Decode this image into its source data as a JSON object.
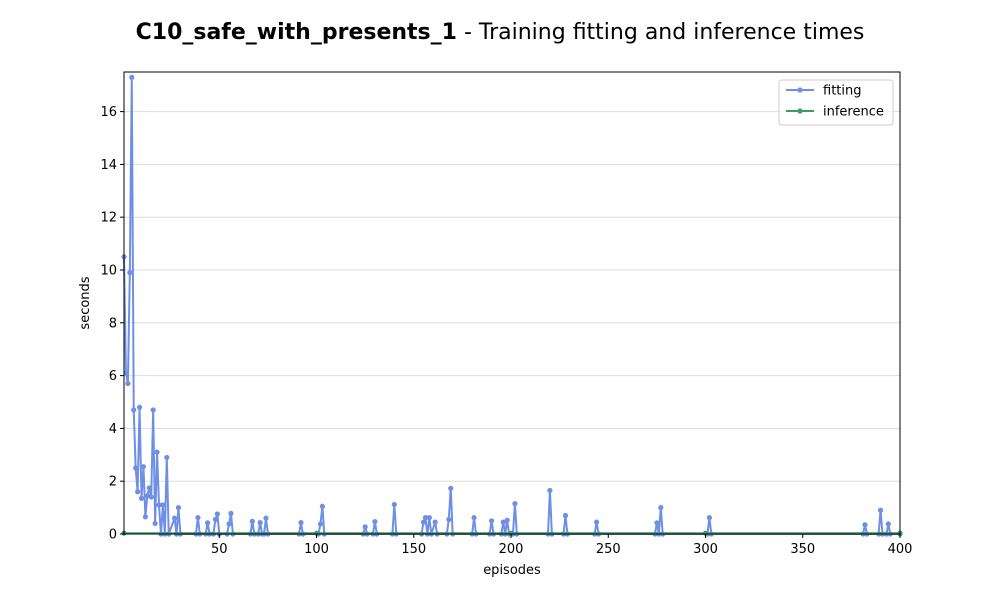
{
  "chart_data": {
    "type": "line",
    "title_bold": "C10_safe_with_presents_1",
    "title_rest": " - Training fitting and inference times",
    "xlabel": "episodes",
    "ylabel": "seconds",
    "xlim": [
      1,
      400
    ],
    "ylim": [
      0,
      17.5
    ],
    "xticks": [
      50,
      100,
      150,
      200,
      250,
      300,
      350,
      400
    ],
    "yticks": [
      0,
      2,
      4,
      6,
      8,
      10,
      12,
      14,
      16
    ],
    "grid": "horizontal",
    "legend_position": "top-right",
    "series": [
      {
        "name": "fitting",
        "color": "#6f8fe6",
        "points": [
          [
            1,
            10.5
          ],
          [
            2,
            6.1
          ],
          [
            3,
            5.7
          ],
          [
            4,
            9.9
          ],
          [
            5,
            17.3
          ],
          [
            6,
            4.7
          ],
          [
            7,
            2.5
          ],
          [
            8,
            1.6
          ],
          [
            9,
            4.8
          ],
          [
            10,
            1.35
          ],
          [
            11,
            2.55
          ],
          [
            12,
            0.65
          ],
          [
            13,
            1.45
          ],
          [
            14,
            1.75
          ],
          [
            15,
            1.4
          ],
          [
            16,
            4.7
          ],
          [
            17,
            0.4
          ],
          [
            18,
            3.1
          ],
          [
            19,
            1.1
          ],
          [
            20,
            0.0
          ],
          [
            21,
            1.1
          ],
          [
            22,
            0.0
          ],
          [
            23,
            2.9
          ],
          [
            24,
            0.0
          ],
          [
            27,
            0.6
          ],
          [
            28,
            0.0
          ],
          [
            29,
            1.0
          ],
          [
            30,
            0.0
          ],
          [
            38,
            0.0
          ],
          [
            39,
            0.62
          ],
          [
            40,
            0.0
          ],
          [
            43,
            0.0
          ],
          [
            44,
            0.42
          ],
          [
            45,
            0.0
          ],
          [
            47,
            0.0
          ],
          [
            48,
            0.55
          ],
          [
            49,
            0.76
          ],
          [
            50,
            0.0
          ],
          [
            54,
            0.0
          ],
          [
            55,
            0.38
          ],
          [
            56,
            0.78
          ],
          [
            57,
            0.0
          ],
          [
            66,
            0.0
          ],
          [
            67,
            0.48
          ],
          [
            68,
            0.0
          ],
          [
            70,
            0.0
          ],
          [
            71,
            0.43
          ],
          [
            72,
            0.0
          ],
          [
            73,
            0.0
          ],
          [
            74,
            0.6
          ],
          [
            75,
            0.0
          ],
          [
            91,
            0.0
          ],
          [
            92,
            0.43
          ],
          [
            93,
            0.0
          ],
          [
            101,
            0.0
          ],
          [
            102,
            0.38
          ],
          [
            103,
            1.05
          ],
          [
            104,
            0.0
          ],
          [
            124,
            0.0
          ],
          [
            125,
            0.27
          ],
          [
            126,
            0.0
          ],
          [
            129,
            0.0
          ],
          [
            130,
            0.47
          ],
          [
            131,
            0.0
          ],
          [
            139,
            0.0
          ],
          [
            140,
            1.12
          ],
          [
            141,
            0.0
          ],
          [
            154,
            0.0
          ],
          [
            155,
            0.45
          ],
          [
            156,
            0.62
          ],
          [
            157,
            0.0
          ],
          [
            158,
            0.62
          ],
          [
            159,
            0.0
          ],
          [
            161,
            0.45
          ],
          [
            162,
            0.0
          ],
          [
            167,
            0.0
          ],
          [
            168,
            0.55
          ],
          [
            169,
            1.73
          ],
          [
            170,
            0.0
          ],
          [
            180,
            0.0
          ],
          [
            181,
            0.62
          ],
          [
            182,
            0.0
          ],
          [
            189,
            0.0
          ],
          [
            190,
            0.5
          ],
          [
            191,
            0.0
          ],
          [
            195,
            0.0
          ],
          [
            196,
            0.45
          ],
          [
            197,
            0.0
          ],
          [
            198,
            0.52
          ],
          [
            199,
            0.0
          ],
          [
            201,
            0.0
          ],
          [
            202,
            1.15
          ],
          [
            203,
            0.0
          ],
          [
            219,
            0.0
          ],
          [
            220,
            1.65
          ],
          [
            221,
            0.0
          ],
          [
            227,
            0.0
          ],
          [
            228,
            0.7
          ],
          [
            229,
            0.0
          ],
          [
            243,
            0.0
          ],
          [
            244,
            0.45
          ],
          [
            245,
            0.0
          ],
          [
            274,
            0.0
          ],
          [
            275,
            0.42
          ],
          [
            276,
            0.0
          ],
          [
            277,
            1.0
          ],
          [
            278,
            0.0
          ],
          [
            301,
            0.0
          ],
          [
            302,
            0.62
          ],
          [
            303,
            0.0
          ],
          [
            381,
            0.0
          ],
          [
            382,
            0.35
          ],
          [
            383,
            0.0
          ],
          [
            389,
            0.0
          ],
          [
            390,
            0.9
          ],
          [
            391,
            0.0
          ],
          [
            393,
            0.0
          ],
          [
            394,
            0.38
          ],
          [
            395,
            0.0
          ],
          [
            400,
            0.0
          ]
        ]
      },
      {
        "name": "inference",
        "color": "#3f9a66",
        "points": [
          [
            1,
            0.03
          ],
          [
            100,
            0.03
          ],
          [
            200,
            0.03
          ],
          [
            300,
            0.03
          ],
          [
            400,
            0.03
          ]
        ]
      }
    ]
  }
}
